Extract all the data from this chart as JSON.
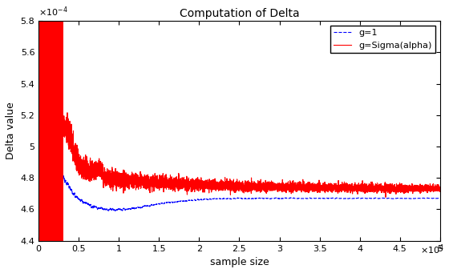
{
  "title": "Computation of Delta",
  "xlabel": "sample size",
  "ylabel": "Delta value",
  "xlim": [
    0,
    50000
  ],
  "ylim": [
    0.00044,
    0.00058
  ],
  "xticks": [
    0,
    5000,
    10000,
    15000,
    20000,
    25000,
    30000,
    35000,
    40000,
    45000,
    50000
  ],
  "yticks": [
    0.00044,
    0.00046,
    0.00048,
    0.0005,
    0.00052,
    0.00054,
    0.00056,
    0.00058
  ],
  "blue_converge": 0.000467,
  "red_converge": 0.00047,
  "line1_color": "#0000FF",
  "line2_color": "#FF0000",
  "line1_label": "g=1",
  "line2_label": "g=Sigma(alpha)",
  "title_fontsize": 10,
  "label_fontsize": 9,
  "tick_fontsize": 8,
  "legend_fontsize": 8
}
